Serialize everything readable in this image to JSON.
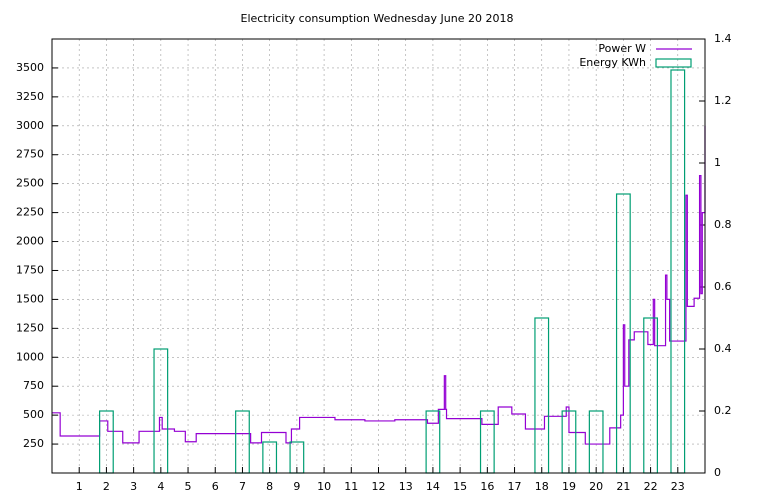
{
  "chart_data": {
    "type": "line",
    "title": "Electricity consumption Wednesday June 20 2018",
    "xlim": [
      0,
      24
    ],
    "xticks": [
      1,
      2,
      3,
      4,
      5,
      6,
      7,
      8,
      9,
      10,
      11,
      12,
      13,
      14,
      15,
      16,
      17,
      18,
      19,
      20,
      21,
      22,
      23
    ],
    "ylim": [
      0,
      3750
    ],
    "yticks": [
      250,
      500,
      750,
      1000,
      1250,
      1500,
      1750,
      2000,
      2250,
      2500,
      2750,
      3000,
      3250,
      3500
    ],
    "y2lim": [
      0,
      1.4
    ],
    "y2ticks": [
      0,
      0.2,
      0.4,
      0.6,
      0.8,
      1,
      1.2,
      1.4
    ],
    "grid": true,
    "legend": "top-right",
    "series": [
      {
        "name": "Power W",
        "type": "line",
        "step": true,
        "color": "#9400d3",
        "x": [
          0,
          0.3,
          1.75,
          2.05,
          2.6,
          3.2,
          3.95,
          4.05,
          4.5,
          4.9,
          5.3,
          7.3,
          7.7,
          8.6,
          8.8,
          9.1,
          10.4,
          11.5,
          12.6,
          13.8,
          14.2,
          14.42,
          14.47,
          14.5,
          15.8,
          16.4,
          16.9,
          17.4,
          18.1,
          18.9,
          19.0,
          19.6,
          20.5,
          20.9,
          21.0,
          21.05,
          21.2,
          21.4,
          21.9,
          22.1,
          22.15,
          22.55,
          22.6,
          22.7,
          23.3,
          23.35,
          23.6,
          23.8,
          23.85,
          23.9,
          24
        ],
        "values": [
          520,
          320,
          450,
          360,
          260,
          360,
          480,
          380,
          360,
          270,
          340,
          260,
          350,
          260,
          380,
          480,
          460,
          450,
          460,
          430,
          550,
          840,
          550,
          470,
          420,
          570,
          510,
          380,
          490,
          570,
          350,
          250,
          390,
          500,
          1280,
          750,
          1150,
          1220,
          1110,
          1500,
          1100,
          1710,
          1500,
          1140,
          2400,
          1440,
          1510,
          2570,
          1550,
          2250,
          3000
        ]
      },
      {
        "name": "Energy KWh",
        "type": "bar",
        "axis": "y2",
        "width": 0.5,
        "color": "#009e73",
        "x": [
          2,
          4,
          7,
          8,
          9,
          14,
          16,
          18,
          19,
          20,
          21,
          22,
          23
        ],
        "values": [
          0.2,
          0.4,
          0.2,
          0.1,
          0.1,
          0.2,
          0.2,
          0.5,
          0.2,
          0.2,
          0.9,
          0.5,
          1.3
        ]
      }
    ]
  }
}
